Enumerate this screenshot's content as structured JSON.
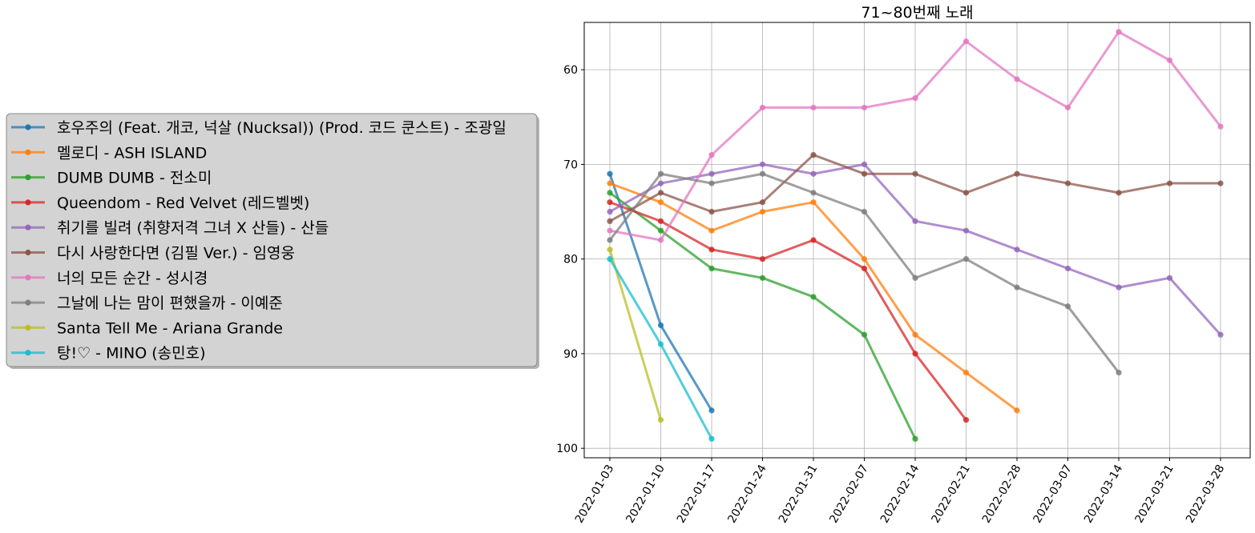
{
  "chart_data": {
    "type": "line",
    "title": "71~80번째 노래",
    "xlabel": "",
    "ylabel": "",
    "x": [
      "2022-01-03",
      "2022-01-10",
      "2022-01-17",
      "2022-01-24",
      "2022-01-31",
      "2022-02-07",
      "2022-02-14",
      "2022-02-21",
      "2022-02-28",
      "2022-03-07",
      "2022-03-14",
      "2022-03-21",
      "2022-03-28"
    ],
    "ylim": [
      101,
      55
    ],
    "y_inverted": true,
    "yticks": [
      60,
      70,
      80,
      90,
      100
    ],
    "grid": true,
    "legend_position": "left",
    "series": [
      {
        "name": "호우주의 (Feat. 개코, 넉살 (Nucksal)) (Prod. 코드 쿤스트) - 조광일",
        "color": "#1f77b4",
        "values": [
          71,
          87,
          96,
          null,
          null,
          null,
          null,
          null,
          null,
          null,
          null,
          null,
          null
        ]
      },
      {
        "name": "멜로디 - ASH ISLAND",
        "color": "#ff7f0e",
        "values": [
          72,
          74,
          77,
          75,
          74,
          80,
          88,
          92,
          96,
          null,
          null,
          null,
          null
        ]
      },
      {
        "name": "DUMB DUMB - 전소미",
        "color": "#2ca02c",
        "values": [
          73,
          77,
          81,
          82,
          84,
          88,
          99,
          null,
          null,
          null,
          null,
          null,
          null
        ]
      },
      {
        "name": "Queendom - Red Velvet (레드벨벳)",
        "color": "#d62728",
        "values": [
          74,
          76,
          79,
          80,
          78,
          81,
          90,
          97,
          null,
          null,
          null,
          null,
          null
        ]
      },
      {
        "name": "취기를 빌려 (취향저격 그녀 X 산들) - 산들",
        "color": "#9467bd",
        "values": [
          75,
          72,
          71,
          70,
          71,
          70,
          76,
          77,
          79,
          81,
          83,
          82,
          88
        ]
      },
      {
        "name": "다시 사랑한다면 (김필 Ver.) - 임영웅",
        "color": "#8c564b",
        "values": [
          76,
          73,
          75,
          74,
          69,
          71,
          71,
          73,
          71,
          72,
          73,
          72,
          72
        ]
      },
      {
        "name": "너의 모든 순간 - 성시경",
        "color": "#e377c2",
        "values": [
          77,
          78,
          69,
          64,
          64,
          64,
          63,
          57,
          61,
          64,
          56,
          59,
          66
        ]
      },
      {
        "name": "그날에 나는 맘이 편했을까 - 이예준",
        "color": "#7f7f7f",
        "values": [
          78,
          71,
          72,
          71,
          73,
          75,
          82,
          80,
          83,
          85,
          92,
          null,
          null
        ]
      },
      {
        "name": "Santa Tell Me - Ariana Grande",
        "color": "#bcbd22",
        "values": [
          79,
          97,
          null,
          null,
          null,
          null,
          null,
          null,
          null,
          null,
          null,
          null,
          null
        ]
      },
      {
        "name": "탕!♡ - MINO (송민호)",
        "color": "#17becf",
        "values": [
          80,
          89,
          99,
          null,
          null,
          null,
          null,
          null,
          null,
          null,
          null,
          null,
          null
        ]
      }
    ]
  }
}
